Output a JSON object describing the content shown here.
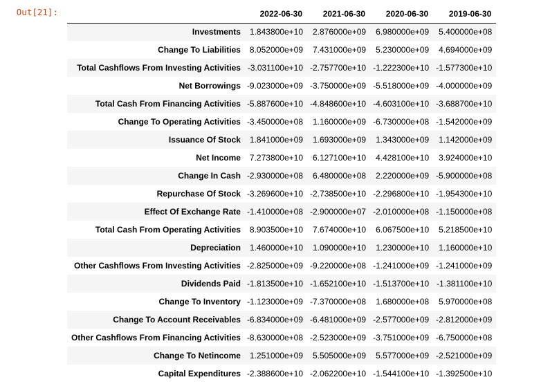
{
  "prompt": "Out[21]:",
  "columns": [
    "2022-06-30",
    "2021-06-30",
    "2020-06-30",
    "2019-06-30"
  ],
  "rows": [
    {
      "label": "Investments",
      "values": [
        "1.843800e+10",
        "2.876000e+09",
        "6.980000e+09",
        "5.400000e+08"
      ]
    },
    {
      "label": "Change To Liabilities",
      "values": [
        "8.052000e+09",
        "7.431000e+09",
        "5.230000e+09",
        "4.694000e+09"
      ]
    },
    {
      "label": "Total Cashflows From Investing Activities",
      "values": [
        "-3.031100e+10",
        "-2.757700e+10",
        "-1.222300e+10",
        "-1.577300e+10"
      ]
    },
    {
      "label": "Net Borrowings",
      "values": [
        "-9.023000e+09",
        "-3.750000e+09",
        "-5.518000e+09",
        "-4.000000e+09"
      ]
    },
    {
      "label": "Total Cash From Financing Activities",
      "values": [
        "-5.887600e+10",
        "-4.848600e+10",
        "-4.603100e+10",
        "-3.688700e+10"
      ]
    },
    {
      "label": "Change To Operating Activities",
      "values": [
        "-3.450000e+08",
        "1.160000e+09",
        "-6.730000e+08",
        "-1.542000e+09"
      ]
    },
    {
      "label": "Issuance Of Stock",
      "values": [
        "1.841000e+09",
        "1.693000e+09",
        "1.343000e+09",
        "1.142000e+09"
      ]
    },
    {
      "label": "Net Income",
      "values": [
        "7.273800e+10",
        "6.127100e+10",
        "4.428100e+10",
        "3.924000e+10"
      ]
    },
    {
      "label": "Change In Cash",
      "values": [
        "-2.930000e+08",
        "6.480000e+08",
        "2.220000e+09",
        "-5.900000e+08"
      ]
    },
    {
      "label": "Repurchase Of Stock",
      "values": [
        "-3.269600e+10",
        "-2.738500e+10",
        "-2.296800e+10",
        "-1.954300e+10"
      ]
    },
    {
      "label": "Effect Of Exchange Rate",
      "values": [
        "-1.410000e+08",
        "-2.900000e+07",
        "-2.010000e+08",
        "-1.150000e+08"
      ]
    },
    {
      "label": "Total Cash From Operating Activities",
      "values": [
        "8.903500e+10",
        "7.674000e+10",
        "6.067500e+10",
        "5.218500e+10"
      ]
    },
    {
      "label": "Depreciation",
      "values": [
        "1.460000e+10",
        "1.090000e+10",
        "1.230000e+10",
        "1.160000e+10"
      ]
    },
    {
      "label": "Other Cashflows From Investing Activities",
      "values": [
        "-2.825000e+09",
        "-9.220000e+08",
        "-1.241000e+09",
        "-1.241000e+09"
      ]
    },
    {
      "label": "Dividends Paid",
      "values": [
        "-1.813500e+10",
        "-1.652100e+10",
        "-1.513700e+10",
        "-1.381100e+10"
      ]
    },
    {
      "label": "Change To Inventory",
      "values": [
        "-1.123000e+09",
        "-7.370000e+08",
        "1.680000e+08",
        "5.970000e+08"
      ]
    },
    {
      "label": "Change To Account Receivables",
      "values": [
        "-6.834000e+09",
        "-6.481000e+09",
        "-2.577000e+09",
        "-2.812000e+09"
      ]
    },
    {
      "label": "Other Cashflows From Financing Activities",
      "values": [
        "-8.630000e+08",
        "-2.523000e+09",
        "-3.751000e+09",
        "-6.750000e+08"
      ]
    },
    {
      "label": "Change To Netincome",
      "values": [
        "1.251000e+09",
        "5.505000e+09",
        "5.577000e+09",
        "-2.521000e+09"
      ]
    },
    {
      "label": "Capital Expenditures",
      "values": [
        "-2.388600e+10",
        "-2.062200e+10",
        "-1.544100e+10",
        "-1.392500e+10"
      ]
    }
  ],
  "colors": {
    "prompt": "#d84315",
    "stripe": "#f5f5f5",
    "rule": "#000000"
  }
}
